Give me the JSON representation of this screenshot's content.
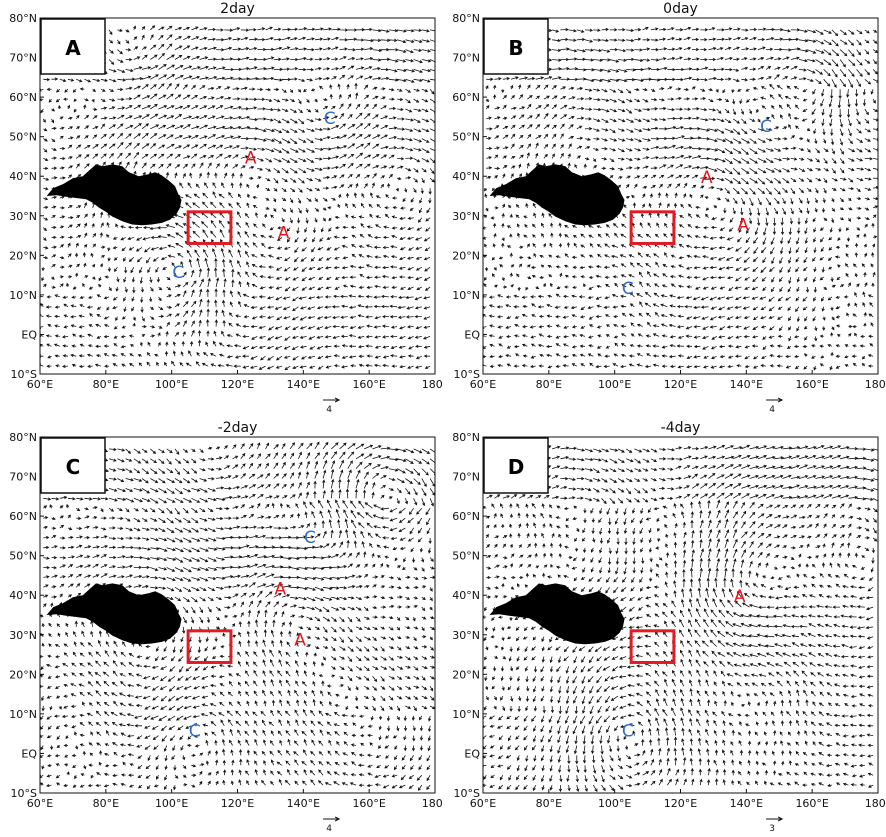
{
  "figure": {
    "panels": [
      {
        "id": "A",
        "letter": "A",
        "title": "2day",
        "ref_vector_label": "4",
        "box": {
          "lon": [
            105,
            118
          ],
          "lat": [
            23,
            31
          ]
        },
        "anticyclones": [
          {
            "label": "A",
            "lon": 124,
            "lat": 45
          },
          {
            "label": "A",
            "lon": 134,
            "lat": 26
          }
        ],
        "cyclones": [
          {
            "label": "C",
            "lon": 148,
            "lat": 55
          },
          {
            "label": "C",
            "lon": 102,
            "lat": 16
          }
        ]
      },
      {
        "id": "B",
        "letter": "B",
        "title": "0day",
        "ref_vector_label": "4",
        "box": {
          "lon": [
            105,
            118
          ],
          "lat": [
            23,
            31
          ]
        },
        "anticyclones": [
          {
            "label": "A",
            "lon": 128,
            "lat": 40
          },
          {
            "label": "A",
            "lon": 139,
            "lat": 28
          }
        ],
        "cyclones": [
          {
            "label": "C",
            "lon": 146,
            "lat": 53
          },
          {
            "label": "C",
            "lon": 104,
            "lat": 12
          }
        ]
      },
      {
        "id": "C",
        "letter": "C",
        "title": "-2day",
        "ref_vector_label": "4",
        "box": {
          "lon": [
            105,
            118
          ],
          "lat": [
            23,
            31
          ]
        },
        "anticyclones": [
          {
            "label": "A",
            "lon": 133,
            "lat": 42
          },
          {
            "label": "A",
            "lon": 139,
            "lat": 29
          }
        ],
        "cyclones": [
          {
            "label": "C",
            "lon": 142,
            "lat": 55
          },
          {
            "label": "C",
            "lon": 107,
            "lat": 6
          }
        ]
      },
      {
        "id": "D",
        "letter": "D",
        "title": "-4day",
        "ref_vector_label": "3",
        "box": {
          "lon": [
            105,
            118
          ],
          "lat": [
            23,
            31
          ]
        },
        "anticyclones": [
          {
            "label": "A",
            "lon": 138,
            "lat": 40
          }
        ],
        "cyclones": [
          {
            "label": "C",
            "lon": 104,
            "lat": 6
          }
        ]
      }
    ],
    "y_ticks": [
      "80°N",
      "70°N",
      "60°N",
      "50°N",
      "40°N",
      "30°N",
      "20°N",
      "10°N",
      "EQ",
      "10°S"
    ],
    "x_ticks": [
      "60°E",
      "80°E",
      "100°E",
      "120°E",
      "140°E",
      "160°E",
      "180°"
    ],
    "colors": {
      "anticyclone": "#e8151b",
      "cyclone": "#2f6fc9",
      "box": "#e01b24",
      "plateau": "#000000",
      "arrow": "#111111"
    }
  }
}
